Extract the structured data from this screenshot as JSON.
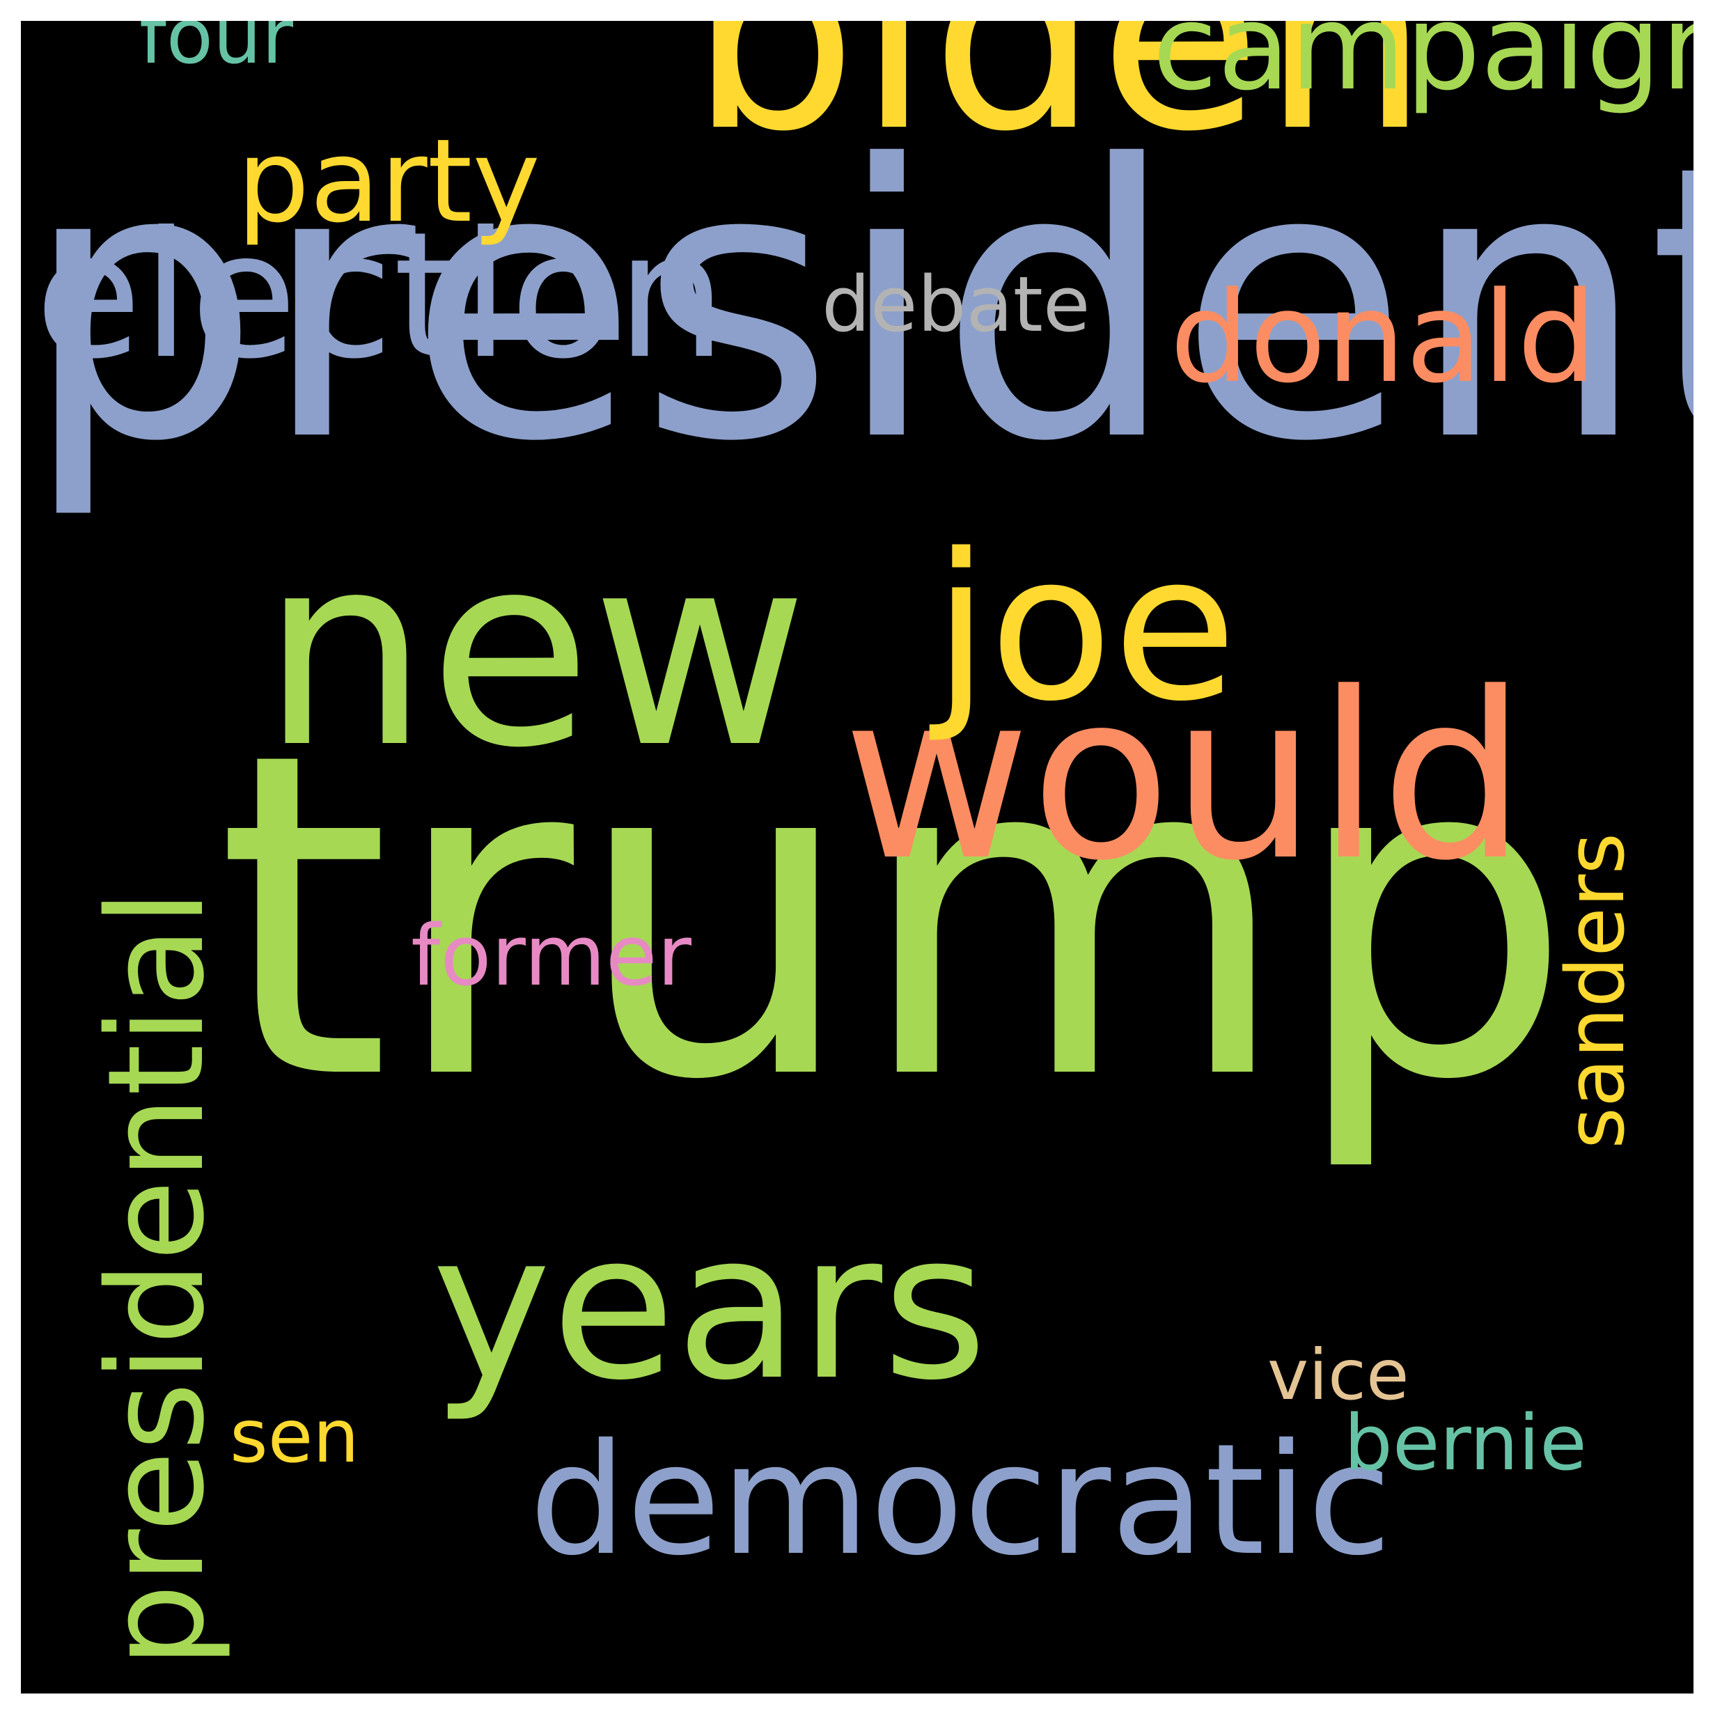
{
  "wordcloud": {
    "background": "#000000",
    "words": [
      {
        "id": "president",
        "text": "president",
        "color": "#8da0cb"
      },
      {
        "id": "trump",
        "text": "trump",
        "color": "#a6d854"
      },
      {
        "id": "biden",
        "text": "biden",
        "color": "#ffd92f"
      },
      {
        "id": "new",
        "text": "new",
        "color": "#a6d854"
      },
      {
        "id": "would",
        "text": "would",
        "color": "#fc8d62"
      },
      {
        "id": "election",
        "text": "election",
        "color": "#8da0cb"
      },
      {
        "id": "joe",
        "text": "joe",
        "color": "#ffd92f"
      },
      {
        "id": "years",
        "text": "years",
        "color": "#a6d854"
      },
      {
        "id": "democratic",
        "text": "democratic",
        "color": "#8da0cb"
      },
      {
        "id": "presidential",
        "text": "presidential",
        "color": "#a6d854"
      },
      {
        "id": "donald",
        "text": "donald",
        "color": "#fc8d62"
      },
      {
        "id": "campaign",
        "text": "campaign",
        "color": "#a6d854"
      },
      {
        "id": "party",
        "text": "party",
        "color": "#ffd92f"
      },
      {
        "id": "sanders",
        "text": "sanders",
        "color": "#ffd92f"
      },
      {
        "id": "former",
        "text": "former",
        "color": "#e78ac3"
      },
      {
        "id": "debate",
        "text": "debate",
        "color": "#b3b3b3"
      },
      {
        "id": "four",
        "text": "four",
        "color": "#66c2a5"
      },
      {
        "id": "bernie",
        "text": "bernie",
        "color": "#66c2a5"
      },
      {
        "id": "sen",
        "text": "sen",
        "color": "#ffd92f"
      },
      {
        "id": "vice",
        "text": "vice",
        "color": "#e5c494"
      }
    ]
  }
}
